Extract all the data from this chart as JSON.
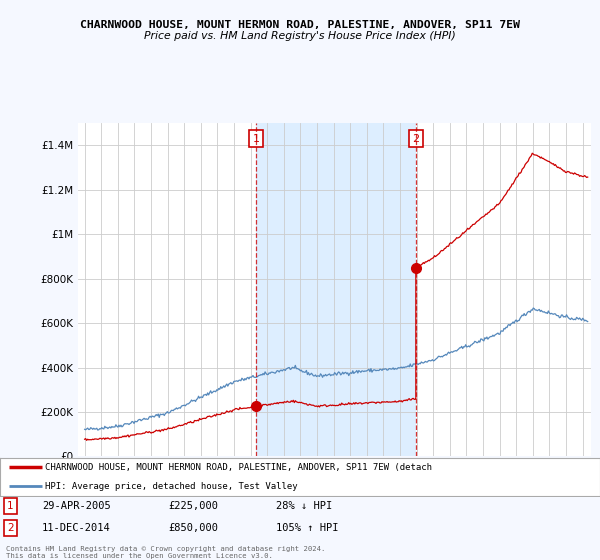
{
  "title": "CHARNWOOD HOUSE, MOUNT HERMON ROAD, PALESTINE, ANDOVER, SP11 7EW",
  "subtitle": "Price paid vs. HM Land Registry's House Price Index (HPI)",
  "red_label": "CHARNWOOD HOUSE, MOUNT HERMON ROAD, PALESTINE, ANDOVER, SP11 7EW (detach",
  "blue_label": "HPI: Average price, detached house, Test Valley",
  "footnote": "Contains HM Land Registry data © Crown copyright and database right 2024.\nThis data is licensed under the Open Government Licence v3.0.",
  "transaction1": {
    "num": "1",
    "date": "29-APR-2005",
    "price": "£225,000",
    "hpi": "28% ↓ HPI"
  },
  "transaction2": {
    "num": "2",
    "date": "11-DEC-2014",
    "price": "£850,000",
    "hpi": "105% ↑ HPI"
  },
  "ylim": [
    0,
    1500000
  ],
  "yticks": [
    0,
    200000,
    400000,
    600000,
    800000,
    1000000,
    1200000,
    1400000
  ],
  "ytick_labels": [
    "£0",
    "£200K",
    "£400K",
    "£600K",
    "£800K",
    "£1M",
    "£1.2M",
    "£1.4M"
  ],
  "red_color": "#cc0000",
  "blue_color": "#5588bb",
  "shade_color": "#ddeeff",
  "marker1_year": 2005.33,
  "marker1_price": 225000,
  "marker2_year": 2014.95,
  "marker2_price": 850000,
  "vline1_year": 2005.33,
  "vline2_year": 2014.95,
  "bg_color": "#f5f8ff",
  "plot_bg": "#ffffff"
}
